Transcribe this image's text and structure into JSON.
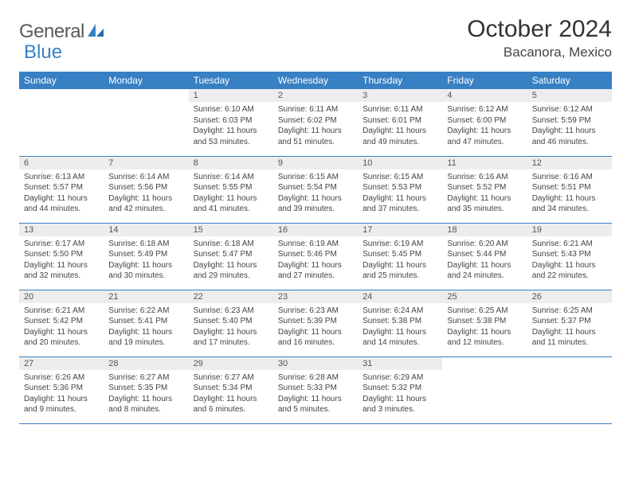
{
  "logo": {
    "text1": "General",
    "text2": "Blue"
  },
  "header": {
    "title": "October 2024",
    "location": "Bacanora, Mexico"
  },
  "colors": {
    "header_bg": "#3880c4",
    "header_text": "#ffffff",
    "daynum_bg": "#ededed",
    "daynum_text": "#555555",
    "body_text": "#444444",
    "rule": "#3880c4"
  },
  "dayNames": [
    "Sunday",
    "Monday",
    "Tuesday",
    "Wednesday",
    "Thursday",
    "Friday",
    "Saturday"
  ],
  "firstDayCol": 2,
  "daysInMonth": 31,
  "days": {
    "1": {
      "sunrise": "6:10 AM",
      "sunset": "6:03 PM",
      "daylight": "11 hours and 53 minutes."
    },
    "2": {
      "sunrise": "6:11 AM",
      "sunset": "6:02 PM",
      "daylight": "11 hours and 51 minutes."
    },
    "3": {
      "sunrise": "6:11 AM",
      "sunset": "6:01 PM",
      "daylight": "11 hours and 49 minutes."
    },
    "4": {
      "sunrise": "6:12 AM",
      "sunset": "6:00 PM",
      "daylight": "11 hours and 47 minutes."
    },
    "5": {
      "sunrise": "6:12 AM",
      "sunset": "5:59 PM",
      "daylight": "11 hours and 46 minutes."
    },
    "6": {
      "sunrise": "6:13 AM",
      "sunset": "5:57 PM",
      "daylight": "11 hours and 44 minutes."
    },
    "7": {
      "sunrise": "6:14 AM",
      "sunset": "5:56 PM",
      "daylight": "11 hours and 42 minutes."
    },
    "8": {
      "sunrise": "6:14 AM",
      "sunset": "5:55 PM",
      "daylight": "11 hours and 41 minutes."
    },
    "9": {
      "sunrise": "6:15 AM",
      "sunset": "5:54 PM",
      "daylight": "11 hours and 39 minutes."
    },
    "10": {
      "sunrise": "6:15 AM",
      "sunset": "5:53 PM",
      "daylight": "11 hours and 37 minutes."
    },
    "11": {
      "sunrise": "6:16 AM",
      "sunset": "5:52 PM",
      "daylight": "11 hours and 35 minutes."
    },
    "12": {
      "sunrise": "6:16 AM",
      "sunset": "5:51 PM",
      "daylight": "11 hours and 34 minutes."
    },
    "13": {
      "sunrise": "6:17 AM",
      "sunset": "5:50 PM",
      "daylight": "11 hours and 32 minutes."
    },
    "14": {
      "sunrise": "6:18 AM",
      "sunset": "5:49 PM",
      "daylight": "11 hours and 30 minutes."
    },
    "15": {
      "sunrise": "6:18 AM",
      "sunset": "5:47 PM",
      "daylight": "11 hours and 29 minutes."
    },
    "16": {
      "sunrise": "6:19 AM",
      "sunset": "5:46 PM",
      "daylight": "11 hours and 27 minutes."
    },
    "17": {
      "sunrise": "6:19 AM",
      "sunset": "5:45 PM",
      "daylight": "11 hours and 25 minutes."
    },
    "18": {
      "sunrise": "6:20 AM",
      "sunset": "5:44 PM",
      "daylight": "11 hours and 24 minutes."
    },
    "19": {
      "sunrise": "6:21 AM",
      "sunset": "5:43 PM",
      "daylight": "11 hours and 22 minutes."
    },
    "20": {
      "sunrise": "6:21 AM",
      "sunset": "5:42 PM",
      "daylight": "11 hours and 20 minutes."
    },
    "21": {
      "sunrise": "6:22 AM",
      "sunset": "5:41 PM",
      "daylight": "11 hours and 19 minutes."
    },
    "22": {
      "sunrise": "6:23 AM",
      "sunset": "5:40 PM",
      "daylight": "11 hours and 17 minutes."
    },
    "23": {
      "sunrise": "6:23 AM",
      "sunset": "5:39 PM",
      "daylight": "11 hours and 16 minutes."
    },
    "24": {
      "sunrise": "6:24 AM",
      "sunset": "5:38 PM",
      "daylight": "11 hours and 14 minutes."
    },
    "25": {
      "sunrise": "6:25 AM",
      "sunset": "5:38 PM",
      "daylight": "11 hours and 12 minutes."
    },
    "26": {
      "sunrise": "6:25 AM",
      "sunset": "5:37 PM",
      "daylight": "11 hours and 11 minutes."
    },
    "27": {
      "sunrise": "6:26 AM",
      "sunset": "5:36 PM",
      "daylight": "11 hours and 9 minutes."
    },
    "28": {
      "sunrise": "6:27 AM",
      "sunset": "5:35 PM",
      "daylight": "11 hours and 8 minutes."
    },
    "29": {
      "sunrise": "6:27 AM",
      "sunset": "5:34 PM",
      "daylight": "11 hours and 6 minutes."
    },
    "30": {
      "sunrise": "6:28 AM",
      "sunset": "5:33 PM",
      "daylight": "11 hours and 5 minutes."
    },
    "31": {
      "sunrise": "6:29 AM",
      "sunset": "5:32 PM",
      "daylight": "11 hours and 3 minutes."
    }
  }
}
